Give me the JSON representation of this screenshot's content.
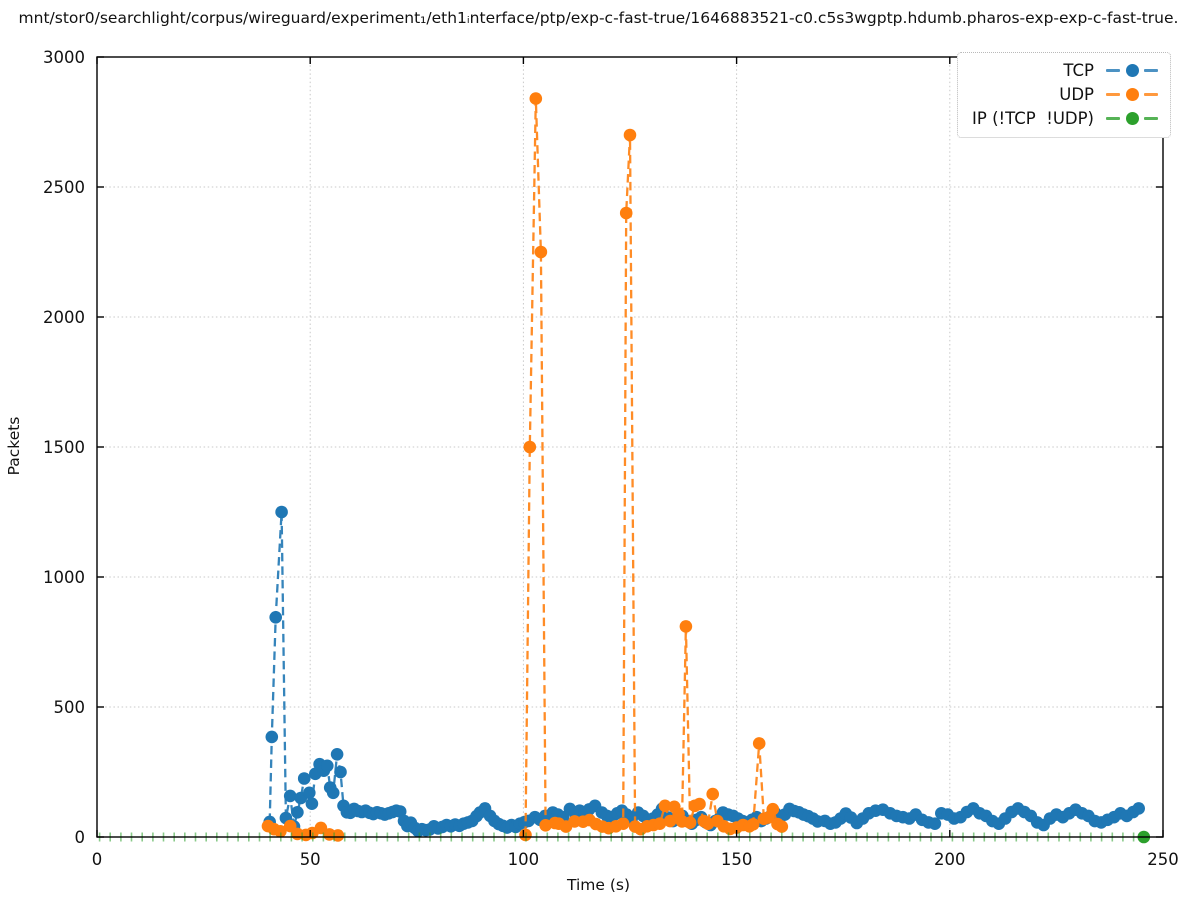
{
  "figure": {
    "title": "mnt/stor0/searchlight/corpus/wireguard/experiment₁/eth1ᵢnterface/ptp/exp-c-fast-true/1646883521-c0.c5s3wgptp.hdumb.pharos-exp-exp-c-fast-true.",
    "background": "#ffffff",
    "grid_color": "#c9c9c9",
    "axis_color": "#000000"
  },
  "chart_data": {
    "type": "line",
    "title": "mnt/stor0/searchlight/corpus/wireguard/experiment₁/eth1ᵢnterface/ptp/exp-c-fast-true/1646883521-c0.c5s3wgptp.hdumb.pharos-exp-exp-c-fast-true.",
    "xlabel": "Time (s)",
    "ylabel": "Packets",
    "xlim": [
      0,
      250
    ],
    "ylim": [
      0,
      3000
    ],
    "x_ticks": [
      0,
      50,
      100,
      150,
      200,
      250
    ],
    "y_ticks": [
      0,
      500,
      1000,
      1500,
      2000,
      2500,
      3000
    ],
    "grid": "dotted, major ticks both axes",
    "legend_position": "upper right",
    "line_style": "dashed lines with filled circle markers",
    "series": [
      {
        "name": "TCP",
        "color": "#1f77b4",
        "points": [
          [
            40.5,
            58
          ],
          [
            41,
            385
          ],
          [
            41.9,
            845
          ],
          [
            43.3,
            1250
          ],
          [
            44.3,
            73
          ],
          [
            45.3,
            158
          ],
          [
            46.2,
            40
          ],
          [
            47,
            95
          ],
          [
            47.8,
            150
          ],
          [
            48.6,
            225
          ],
          [
            49.8,
            170
          ],
          [
            50.4,
            128
          ],
          [
            51.2,
            243
          ],
          [
            52.2,
            280
          ],
          [
            53.2,
            255
          ],
          [
            54,
            274
          ],
          [
            54.7,
            190
          ],
          [
            55.4,
            170
          ],
          [
            56.3,
            318
          ],
          [
            57.1,
            250
          ],
          [
            57.8,
            120
          ],
          [
            58.6,
            95
          ],
          [
            59.4,
            93
          ],
          [
            60.3,
            108
          ],
          [
            61.2,
            100
          ],
          [
            62.1,
            96
          ],
          [
            63,
            101
          ],
          [
            63.9,
            93
          ],
          [
            64.8,
            88
          ],
          [
            65.7,
            95
          ],
          [
            66.6,
            91
          ],
          [
            67.5,
            86
          ],
          [
            68.4,
            91
          ],
          [
            69.3,
            96
          ],
          [
            70.2,
            101
          ],
          [
            71.1,
            98
          ],
          [
            72,
            62
          ],
          [
            72.8,
            42
          ],
          [
            73.6,
            55
          ],
          [
            74.5,
            35
          ],
          [
            75.3,
            23
          ],
          [
            76.2,
            30
          ],
          [
            77.1,
            26
          ],
          [
            78,
            29
          ],
          [
            79,
            41
          ],
          [
            80,
            33
          ],
          [
            81,
            39
          ],
          [
            82,
            46
          ],
          [
            83,
            41
          ],
          [
            84,
            48
          ],
          [
            85,
            43
          ],
          [
            86,
            51
          ],
          [
            87,
            56
          ],
          [
            88,
            62
          ],
          [
            89,
            80
          ],
          [
            89.8,
            94
          ],
          [
            91,
            110
          ],
          [
            92.2,
            81
          ],
          [
            93.2,
            62
          ],
          [
            94.2,
            50
          ],
          [
            95.2,
            43
          ],
          [
            96.2,
            36
          ],
          [
            97.2,
            46
          ],
          [
            98.2,
            39
          ],
          [
            99.2,
            51
          ],
          [
            100.2,
            57
          ],
          [
            101.2,
            62
          ],
          [
            102.7,
            76
          ],
          [
            103.9,
            66
          ],
          [
            105.1,
            81
          ],
          [
            106.9,
            94
          ],
          [
            108.1,
            86
          ],
          [
            109.3,
            76
          ],
          [
            110.9,
            108
          ],
          [
            112.1,
            91
          ],
          [
            113.2,
            101
          ],
          [
            114.3,
            96
          ],
          [
            115.4,
            106
          ],
          [
            116.8,
            120
          ],
          [
            118.4,
            94
          ],
          [
            119.6,
            81
          ],
          [
            120.8,
            76
          ],
          [
            122,
            91
          ],
          [
            123.1,
            101
          ],
          [
            124.2,
            86
          ],
          [
            125.4,
            71
          ],
          [
            126.9,
            94
          ],
          [
            128.1,
            81
          ],
          [
            129.2,
            63
          ],
          [
            130.4,
            71
          ],
          [
            131.5,
            86
          ],
          [
            132.5,
            108
          ],
          [
            133.9,
            75
          ],
          [
            135.1,
            61
          ],
          [
            136.2,
            71
          ],
          [
            137.3,
            81
          ],
          [
            138.4,
            61
          ],
          [
            139.5,
            51
          ],
          [
            140.6,
            66
          ],
          [
            141.7,
            76
          ],
          [
            142.8,
            56
          ],
          [
            143.9,
            46
          ],
          [
            145,
            61
          ],
          [
            146,
            71
          ],
          [
            146.8,
            94
          ],
          [
            148,
            86
          ],
          [
            149.2,
            81
          ],
          [
            150.3,
            71
          ],
          [
            151.4,
            61
          ],
          [
            152.5,
            56
          ],
          [
            153.6,
            66
          ],
          [
            154.7,
            76
          ],
          [
            155.8,
            61
          ],
          [
            156.9,
            71
          ],
          [
            158,
            81
          ],
          [
            159.1,
            91
          ],
          [
            160.2,
            76
          ],
          [
            161.3,
            86
          ],
          [
            162.4,
            108
          ],
          [
            163.5,
            100
          ],
          [
            164.6,
            95
          ],
          [
            165.7,
            86
          ],
          [
            166.8,
            80
          ],
          [
            167.9,
            71
          ],
          [
            169,
            60
          ],
          [
            170.7,
            62
          ],
          [
            172,
            51
          ],
          [
            173.2,
            56
          ],
          [
            174.4,
            71
          ],
          [
            175.6,
            90
          ],
          [
            176.8,
            75
          ],
          [
            178.2,
            54
          ],
          [
            179.6,
            71
          ],
          [
            181,
            91
          ],
          [
            182.6,
            101
          ],
          [
            184.3,
            105
          ],
          [
            186,
            91
          ],
          [
            187.5,
            81
          ],
          [
            189,
            76
          ],
          [
            190.5,
            71
          ],
          [
            192,
            86
          ],
          [
            193.5,
            66
          ],
          [
            195,
            56
          ],
          [
            196.5,
            51
          ],
          [
            198,
            91
          ],
          [
            199.5,
            86
          ],
          [
            201,
            71
          ],
          [
            202.5,
            76
          ],
          [
            204,
            96
          ],
          [
            205.5,
            110
          ],
          [
            207,
            91
          ],
          [
            208.5,
            81
          ],
          [
            210,
            61
          ],
          [
            211.5,
            51
          ],
          [
            213,
            71
          ],
          [
            214.5,
            96
          ],
          [
            216,
            110
          ],
          [
            217.5,
            96
          ],
          [
            219,
            81
          ],
          [
            220.5,
            56
          ],
          [
            222,
            46
          ],
          [
            223.5,
            71
          ],
          [
            225,
            86
          ],
          [
            226.5,
            76
          ],
          [
            228,
            91
          ],
          [
            229.5,
            105
          ],
          [
            231,
            91
          ],
          [
            232.5,
            81
          ],
          [
            234,
            61
          ],
          [
            235.5,
            56
          ],
          [
            237,
            66
          ],
          [
            238.5,
            76
          ],
          [
            240,
            91
          ],
          [
            241.5,
            81
          ],
          [
            243,
            96
          ],
          [
            244.3,
            110
          ]
        ]
      },
      {
        "name": "UDP",
        "color": "#ff7f0e",
        "points": [
          [
            40.1,
            42
          ],
          [
            41.5,
            30
          ],
          [
            43,
            22
          ],
          [
            45.3,
            42
          ],
          [
            47,
            12
          ],
          [
            49,
            8
          ],
          [
            50.5,
            15
          ],
          [
            52.5,
            35
          ],
          [
            54.5,
            10
          ],
          [
            56.5,
            6
          ],
          [
            100.5,
            8
          ],
          [
            101.5,
            1500
          ],
          [
            102.9,
            2840
          ],
          [
            104.1,
            2250
          ],
          [
            105.2,
            45
          ],
          [
            107.4,
            54
          ],
          [
            108.3,
            51
          ],
          [
            110,
            40
          ],
          [
            112,
            60
          ],
          [
            114,
            59
          ],
          [
            115.5,
            65
          ],
          [
            117,
            50
          ],
          [
            118.5,
            40
          ],
          [
            120,
            34
          ],
          [
            121.7,
            41
          ],
          [
            123.4,
            51
          ],
          [
            124.1,
            2400
          ],
          [
            125,
            2700
          ],
          [
            126.2,
            40
          ],
          [
            127.5,
            30
          ],
          [
            129,
            41
          ],
          [
            130.5,
            46
          ],
          [
            132,
            51
          ],
          [
            133.2,
            120
          ],
          [
            134.4,
            61
          ],
          [
            135.4,
            116
          ],
          [
            136.4,
            89
          ],
          [
            137.2,
            60
          ],
          [
            138.1,
            810
          ],
          [
            139.1,
            55
          ],
          [
            140.2,
            120
          ],
          [
            141.3,
            127
          ],
          [
            142.3,
            61
          ],
          [
            143.3,
            51
          ],
          [
            144.4,
            165
          ],
          [
            145.5,
            61
          ],
          [
            147,
            41
          ],
          [
            148.5,
            31
          ],
          [
            150,
            36
          ],
          [
            151.5,
            46
          ],
          [
            153,
            41
          ],
          [
            153.9,
            49
          ],
          [
            155.3,
            360
          ],
          [
            156.4,
            70
          ],
          [
            157.4,
            75
          ],
          [
            158.5,
            107
          ],
          [
            159.6,
            50
          ],
          [
            160.6,
            40
          ]
        ]
      },
      {
        "name": "IP (!TCP  !UDP)",
        "color": "#2ca02c",
        "points": [
          [
            245.5,
            0
          ]
        ],
        "baseline_dashes": {
          "t_start": 0.6,
          "t_end": 245.6,
          "every_s": 2.5,
          "value": 0,
          "note": "short green vertical dashes along y=0 axis"
        }
      }
    ]
  }
}
